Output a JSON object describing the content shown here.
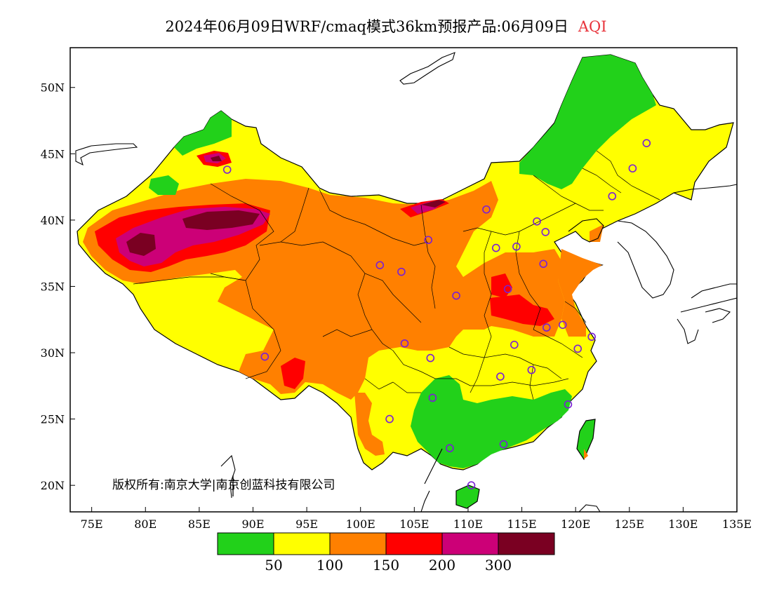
{
  "title": {
    "main": "2024年06月09日WRF/cmaq模式36km预报产品:06月09日",
    "variable": "AQI",
    "variable_color": "#e8333b"
  },
  "copyright": "版权所有:南京大学|南京创蓝科技有限公司",
  "axes": {
    "lon_range": [
      73,
      135
    ],
    "lat_range": [
      18,
      53
    ],
    "x_ticks": [
      "75E",
      "80E",
      "85E",
      "90E",
      "95E",
      "100E",
      "105E",
      "110E",
      "115E",
      "120E",
      "125E",
      "130E",
      "135E"
    ],
    "x_tick_values": [
      75,
      80,
      85,
      90,
      95,
      100,
      105,
      110,
      115,
      120,
      125,
      130,
      135
    ],
    "y_ticks": [
      "20N",
      "25N",
      "30N",
      "35N",
      "40N",
      "45N",
      "50N"
    ],
    "y_tick_values": [
      20,
      25,
      30,
      35,
      40,
      45,
      50
    ]
  },
  "colorbar": {
    "colors": [
      "#22d11a",
      "#ffff00",
      "#ff8000",
      "#ff0000",
      "#cc0077",
      "#7a0022"
    ],
    "labels": [
      "50",
      "100",
      "150",
      "200",
      "300"
    ]
  },
  "stations": [
    [
      126.6,
      45.8
    ],
    [
      125.3,
      43.9
    ],
    [
      123.4,
      41.8
    ],
    [
      116.4,
      39.9
    ],
    [
      117.2,
      39.1
    ],
    [
      114.5,
      38.0
    ],
    [
      112.6,
      37.9
    ],
    [
      111.7,
      40.8
    ],
    [
      106.3,
      38.5
    ],
    [
      103.8,
      36.1
    ],
    [
      101.8,
      36.6
    ],
    [
      108.9,
      34.3
    ],
    [
      113.7,
      34.8
    ],
    [
      117.0,
      36.7
    ],
    [
      117.3,
      31.9
    ],
    [
      118.8,
      32.1
    ],
    [
      121.5,
      31.2
    ],
    [
      120.2,
      30.3
    ],
    [
      114.3,
      30.6
    ],
    [
      113.0,
      28.2
    ],
    [
      115.9,
      28.7
    ],
    [
      119.3,
      26.1
    ],
    [
      113.3,
      23.1
    ],
    [
      108.3,
      22.8
    ],
    [
      110.3,
      20.0
    ],
    [
      102.7,
      25.0
    ],
    [
      106.7,
      26.6
    ],
    [
      106.5,
      29.6
    ],
    [
      104.1,
      30.7
    ],
    [
      91.1,
      29.7
    ],
    [
      87.6,
      43.8
    ]
  ]
}
